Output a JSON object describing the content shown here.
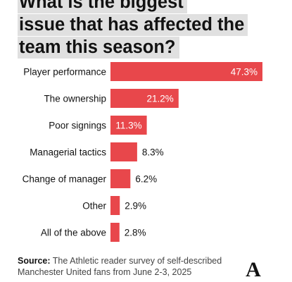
{
  "title": {
    "lines": [
      "What is the biggest",
      "issue that has affected the",
      "team this season?"
    ]
  },
  "chart_data": {
    "type": "bar",
    "orientation": "horizontal",
    "categories": [
      "Player performance",
      "The ownership",
      "Poor signings",
      "Managerial tactics",
      "Change of manager",
      "Other",
      "All of the above"
    ],
    "values": [
      47.3,
      21.2,
      11.3,
      8.3,
      6.2,
      2.9,
      2.8
    ],
    "value_labels": [
      "47.3%",
      "21.2%",
      "11.3%",
      "8.3%",
      "6.2%",
      "2.9%",
      "2.8%"
    ],
    "xlim": [
      0,
      47.3
    ],
    "grid": false,
    "bar_color": "#e8474b",
    "inside_label_color": "#ffffff",
    "outside_label_color": "#121212"
  },
  "source": {
    "prefix": "Source:",
    "text": "The Athletic reader survey of self-described Manchester United fans from June 2-3, 2025"
  },
  "logo": {
    "letter": "A"
  }
}
